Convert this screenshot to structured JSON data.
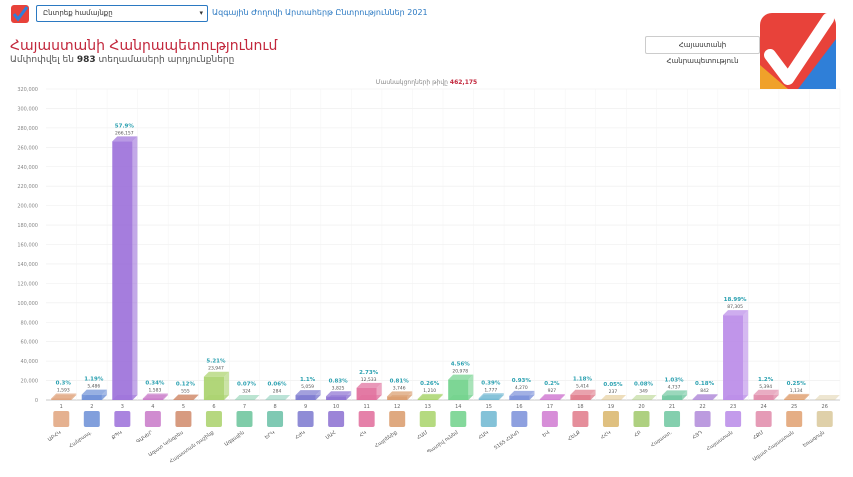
{
  "header": {
    "community_select": "Ընտրեք համայնքը",
    "election_link": "Ազգային Ժողովի Արտահերթ Ընտրություններ 2021",
    "region_button": "Հայաստանի Հանրապետություն",
    "title": "Հայաստանի Հանրապետությունում",
    "subtitle_prefix": "Ամփոփվել են",
    "subtitle_count": "983",
    "subtitle_suffix": "տեղամասերի արդյունքները",
    "voters_label": "Մասնակցողների թիվը",
    "voters_count": "462,175"
  },
  "colors": {
    "brand_red": "#e8423a",
    "brand_blue": "#2f7fd8",
    "accent": "#c2273c"
  },
  "chart_data": {
    "type": "bar",
    "ylim": [
      0,
      320000
    ],
    "yticks": [
      0,
      20000,
      40000,
      60000,
      80000,
      100000,
      120000,
      140000,
      160000,
      180000,
      200000,
      220000,
      240000,
      260000,
      280000,
      300000,
      320000
    ],
    "ytick_labels": [
      "0",
      "20,000",
      "40,000",
      "60,000",
      "80,000",
      "100,000",
      "120,000",
      "140,000",
      "160,000",
      "180,000",
      "200,000",
      "220,000",
      "240,000",
      "260,000",
      "280,000",
      "300,000",
      "320,000"
    ],
    "grid": true,
    "categories": [
      "1",
      "2",
      "3",
      "4",
      "5",
      "6",
      "7",
      "8",
      "9",
      "10",
      "11",
      "12",
      "13",
      "14",
      "15",
      "16",
      "17",
      "18",
      "19",
      "20",
      "21",
      "22",
      "23",
      "24",
      "25",
      "26"
    ],
    "values": [
      1593,
      5486,
      266157,
      1583,
      555,
      23947,
      324,
      284,
      5059,
      3825,
      12533,
      3746,
      1210,
      20978,
      1777,
      4270,
      927,
      5414,
      237,
      349,
      4737,
      842,
      87305,
      5394,
      1134,
      0
    ],
    "percent_labels": [
      "0.3%",
      "1.19%",
      "57.9%",
      "0.34%",
      "0.12%",
      "5.21%",
      "0.07%",
      "0.06%",
      "1.1%",
      "0.83%",
      "2.73%",
      "0.81%",
      "0.26%",
      "4.56%",
      "0.39%",
      "0.93%",
      "0.2%",
      "1.18%",
      "0.05%",
      "0.08%",
      "1.03%",
      "0.18%",
      "18.99%",
      "1.2%",
      "0.25%",
      ""
    ],
    "value_labels": [
      "1,593",
      "5,486",
      "266,157",
      "1,583",
      "555",
      "23,947",
      "324",
      "284",
      "5,059",
      "3,825",
      "12,533",
      "3,746",
      "1,210",
      "20,978",
      "1,777",
      "4,270",
      "927",
      "5,414",
      "237",
      "349",
      "4,737",
      "842",
      "87,305",
      "5,394",
      "1,134",
      ""
    ],
    "party_names": [
      "ԱԲՀԿ",
      "Հանրապ.",
      "ՔՊԿ",
      "ԳԱԿԵՐ",
      "Ազատ Կոնգրես",
      "Հայաստան դաշինք",
      "Ազգային",
      "ԵՐԿ",
      "ՀԺԿ",
      "ՍԱՀ",
      "ՀԿ",
      "Հայրենիք",
      "ՀԱՄ",
      "Պատիվ ունեմ",
      "ՀԱԿ",
      "5165 ՀԱԿՈ",
      "ԵՎ",
      "ՀԵԼՔ",
      "ՀՀԿ",
      "ՀԲ",
      "Հայաստ.",
      "ՀՅԴ",
      "Հայաստան",
      "ՀՔՄ",
      "Ազատ Հայաստան",
      "Եռագույն"
    ],
    "bar_colors": [
      "#e0a37c",
      "#6b8ed6",
      "#9b6fd9",
      "#c878c8",
      "#d08a6a",
      "#a9d16a",
      "#68c39a",
      "#69c0a6",
      "#7b78cf",
      "#8b6fd1",
      "#e06b9a",
      "#d99a6a",
      "#a8d46a",
      "#6fd18a",
      "#6fb7d1",
      "#7a8fd9",
      "#d07ad1",
      "#e07a8a",
      "#d9b56a",
      "#a0c86a",
      "#6fc7a0",
      "#b08ad9",
      "#b98ae8",
      "#e08aa9",
      "#e0a070",
      "#d9c89a"
    ]
  }
}
